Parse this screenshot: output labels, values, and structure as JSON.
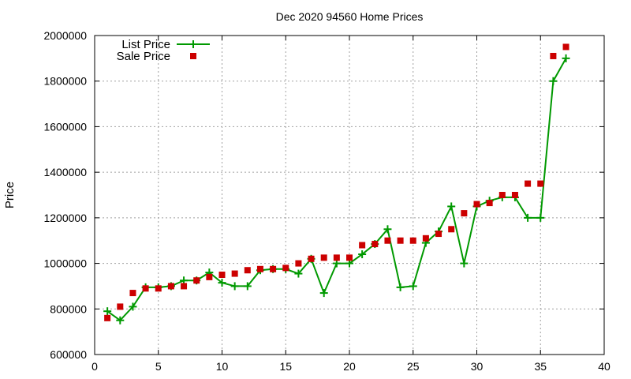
{
  "chart_data": {
    "type": "line",
    "title": "Dec 2020 94560 Home Prices",
    "xlabel": "",
    "ylabel": "Price",
    "xlim": [
      0,
      40
    ],
    "ylim": [
      600000,
      2000000
    ],
    "xticks": [
      "0",
      "5",
      "10",
      "15",
      "20",
      "25",
      "30",
      "35",
      "40"
    ],
    "yticks": [
      "600000",
      "800000",
      "1000000",
      "1200000",
      "1400000",
      "1600000",
      "1800000",
      "2000000"
    ],
    "grid": true,
    "legend": "top-left",
    "x": [
      1,
      2,
      3,
      4,
      5,
      6,
      7,
      8,
      9,
      10,
      11,
      12,
      13,
      14,
      15,
      16,
      17,
      18,
      19,
      20,
      21,
      22,
      23,
      24,
      25,
      26,
      27,
      28,
      29,
      30,
      31,
      32,
      33,
      34,
      35,
      36,
      37
    ],
    "series": [
      {
        "name": "List Price",
        "style": "line+cross",
        "color": "#009900",
        "values": [
          790000,
          750000,
          810000,
          895000,
          895000,
          900000,
          925000,
          925000,
          960000,
          915000,
          900000,
          900000,
          970000,
          975000,
          975000,
          955000,
          1020000,
          870000,
          1000000,
          1000000,
          1040000,
          1085000,
          1150000,
          895000,
          900000,
          1090000,
          1140000,
          1250000,
          1000000,
          1250000,
          1275000,
          1290000,
          1290000,
          1200000,
          1200000,
          1800000,
          1900000
        ]
      },
      {
        "name": "Sale Price",
        "style": "square-markers",
        "color": "#cc0000",
        "values": [
          760000,
          810000,
          870000,
          890000,
          890000,
          900000,
          900000,
          925000,
          940000,
          950000,
          955000,
          970000,
          975000,
          975000,
          980000,
          1000000,
          1020000,
          1025000,
          1025000,
          1025000,
          1080000,
          1085000,
          1100000,
          1100000,
          1100000,
          1110000,
          1130000,
          1150000,
          1220000,
          1260000,
          1265000,
          1300000,
          1300000,
          1350000,
          1350000,
          1910000,
          1950000
        ]
      }
    ]
  }
}
